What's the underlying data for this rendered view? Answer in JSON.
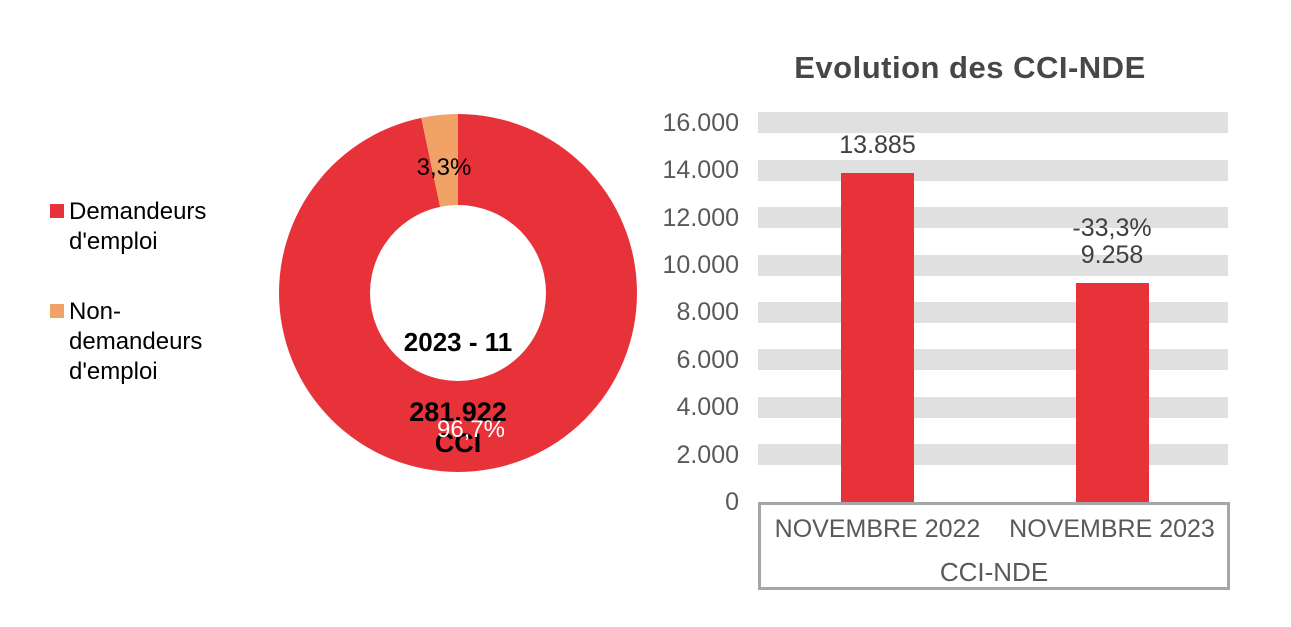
{
  "page": {
    "background_color": "#FFFFFF"
  },
  "colors": {
    "series_red": "#E8323A",
    "series_orange": "#F0A267",
    "grid_band_gray": "#E0E0E0",
    "axis_box_border_gray": "#A6A6A6",
    "axis_text_gray": "#595959",
    "title_gray": "#474747",
    "data_label_gray": "#3F3F3F"
  },
  "chart_data": [
    {
      "type": "pie",
      "subtype": "donut",
      "legend_position": "left",
      "center_labels": [
        "2023 - 11",
        "281.922",
        "CCI"
      ],
      "slices": [
        {
          "name": "Demandeurs d'emploi",
          "value": 96.7,
          "label": "96,7%",
          "color": "#E8323A",
          "label_color": "#FFFFFF"
        },
        {
          "name": "Non-demandeurs d'emploi",
          "value": 3.3,
          "label": "3,3%",
          "color": "#F0A267",
          "label_color": "#000000"
        }
      ]
    },
    {
      "type": "bar",
      "title": "Evolution des CCI-NDE",
      "categories": [
        "NOVEMBRE 2022",
        "NOVEMBRE 2023"
      ],
      "values": [
        13885,
        9258
      ],
      "value_labels": [
        "13.885",
        "9.258"
      ],
      "annotations": [
        "",
        "-33,3%"
      ],
      "xlabel": "CCI-NDE",
      "ylabel": "",
      "ylim": [
        0,
        16000
      ],
      "y_tick_values": [
        16000,
        14000,
        12000,
        10000,
        8000,
        6000,
        4000,
        2000,
        0
      ],
      "y_ticks": [
        "16.000",
        "14.000",
        "12.000",
        "10.000",
        "8.000",
        "6.000",
        "4.000",
        "2.000",
        "0"
      ],
      "grid": "horizontal-bands",
      "legend_position": "none",
      "bar_color": "#E8323A"
    }
  ]
}
